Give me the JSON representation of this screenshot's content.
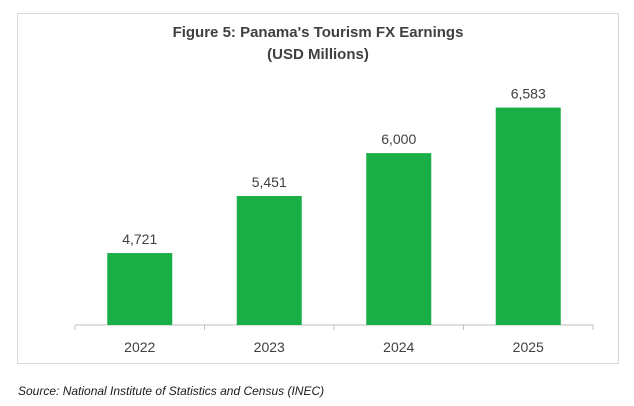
{
  "chart_data": {
    "type": "bar",
    "title_line1": "Figure 5: Panama's Tourism FX Earnings",
    "title_line2": "(USD Millions)",
    "categories": [
      "2022",
      "2023",
      "2024",
      "2025"
    ],
    "values": [
      4721,
      5451,
      6000,
      6583
    ],
    "value_labels": [
      "4,721",
      "5,451",
      "6,000",
      "6,583"
    ],
    "xlabel": "",
    "ylabel": "",
    "ylim": [
      3800,
      7000
    ],
    "grid": false,
    "legend": "none",
    "bar_color": "#1aae47",
    "axis_color": "#bfbfbf",
    "label_color": "#404040"
  },
  "source": "Source: National Institute of Statistics and Census (INEC)"
}
